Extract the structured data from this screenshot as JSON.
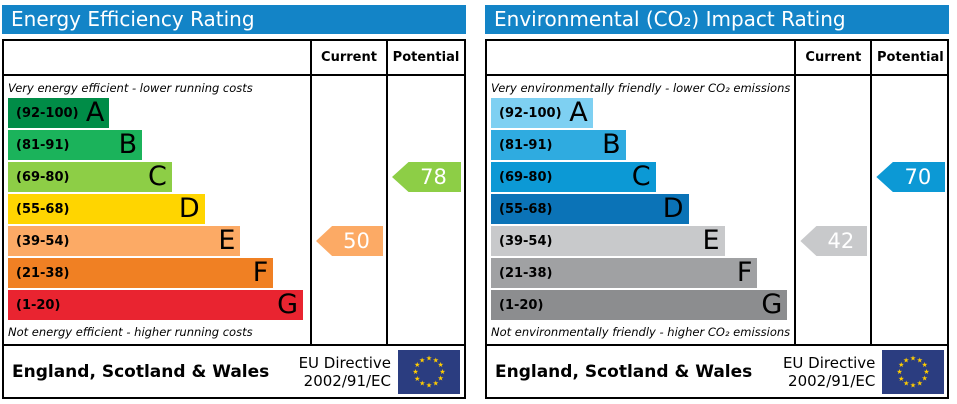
{
  "header_color": "#1384c7",
  "footer": {
    "region": "England, Scotland & Wales",
    "directive_line1": "EU Directive",
    "directive_line2": "2002/91/EC",
    "flag_background": "#2b3d80",
    "flag_star_color": "#ffcc00",
    "flag_star_glyph": "★"
  },
  "chart_data": [
    {
      "type": "bar",
      "title": "Energy Efficiency Rating",
      "columns": [
        "Current",
        "Potential"
      ],
      "top_note": "Very energy efficient - lower running costs",
      "bottom_note": "Not energy efficient - higher running costs",
      "bands": [
        {
          "letter": "A",
          "range": "(92-100)",
          "color": "#008c47",
          "width_pct": 34
        },
        {
          "letter": "B",
          "range": "(81-91)",
          "color": "#1bb35b",
          "width_pct": 45
        },
        {
          "letter": "C",
          "range": "(69-80)",
          "color": "#8dce46",
          "width_pct": 55
        },
        {
          "letter": "D",
          "range": "(55-68)",
          "color": "#ffd500",
          "width_pct": 66
        },
        {
          "letter": "E",
          "range": "(39-54)",
          "color": "#fcaa65",
          "width_pct": 78
        },
        {
          "letter": "F",
          "range": "(21-38)",
          "color": "#f08023",
          "width_pct": 89
        },
        {
          "letter": "G",
          "range": "(1-20)",
          "color": "#e92430",
          "width_pct": 99
        }
      ],
      "current": {
        "value": 50,
        "band": "E",
        "band_index": 4,
        "color": "#fcaa65"
      },
      "potential": {
        "value": 78,
        "band": "C",
        "band_index": 2,
        "color": "#8dce46"
      }
    },
    {
      "type": "bar",
      "title": "Environmental (CO₂) Impact Rating",
      "columns": [
        "Current",
        "Potential"
      ],
      "top_note": "Very environmentally friendly - lower CO₂ emissions",
      "bottom_note": "Not environmentally friendly - higher CO₂ emissions",
      "bands": [
        {
          "letter": "A",
          "range": "(92-100)",
          "color": "#7ed0f2",
          "width_pct": 34
        },
        {
          "letter": "B",
          "range": "(81-91)",
          "color": "#2fabe0",
          "width_pct": 45
        },
        {
          "letter": "C",
          "range": "(69-80)",
          "color": "#0c99d5",
          "width_pct": 55
        },
        {
          "letter": "D",
          "range": "(55-68)",
          "color": "#0b73b7",
          "width_pct": 66
        },
        {
          "letter": "E",
          "range": "(39-54)",
          "color": "#c8c9cb",
          "width_pct": 78
        },
        {
          "letter": "F",
          "range": "(21-38)",
          "color": "#a0a1a3",
          "width_pct": 89
        },
        {
          "letter": "G",
          "range": "(1-20)",
          "color": "#8c8d8f",
          "width_pct": 99
        }
      ],
      "current": {
        "value": 42,
        "band": "E",
        "band_index": 4,
        "color": "#c8c9cb"
      },
      "potential": {
        "value": 70,
        "band": "C",
        "band_index": 2,
        "color": "#0c99d5"
      }
    }
  ]
}
